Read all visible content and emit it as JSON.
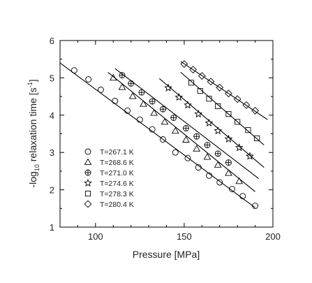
{
  "chart_data": {
    "type": "scatter",
    "xlabel": "Pressure  [MPa]",
    "ylabel": {
      "main": "-log",
      "sub": "10",
      "rest": " relaxation time  [s",
      "sup": "-1",
      "close": "]"
    },
    "xlim": [
      80,
      200
    ],
    "ylim": [
      1,
      6
    ],
    "xticks": [
      100,
      150,
      200
    ],
    "yticks": [
      1,
      2,
      3,
      4,
      5,
      6
    ],
    "grid": false,
    "legend_position": "bottom-left",
    "series": [
      {
        "name": "T=267.1 K",
        "marker": "circle",
        "x": [
          88,
          96,
          103,
          111,
          118,
          125,
          132,
          138,
          145,
          152,
          158,
          164,
          170,
          177,
          183,
          190
        ],
        "y": [
          5.2,
          4.96,
          4.68,
          4.38,
          4.12,
          3.88,
          3.62,
          3.35,
          3.0,
          2.85,
          2.6,
          2.38,
          2.2,
          2.02,
          1.83,
          1.57
        ],
        "fit": [
          [
            80,
            5.4
          ],
          [
            190,
            1.52
          ]
        ]
      },
      {
        "name": "T=268.6 K",
        "marker": "triangle",
        "x": [
          110,
          115,
          121,
          127,
          133,
          139,
          145,
          151,
          157,
          163,
          169,
          175,
          181
        ],
        "y": [
          5.0,
          4.75,
          4.51,
          4.3,
          4.06,
          3.82,
          3.58,
          3.34,
          3.1,
          2.88,
          2.67,
          2.45,
          2.23
        ],
        "fit": [
          [
            107,
            5.15
          ],
          [
            190,
            1.95
          ]
        ]
      },
      {
        "name": "T=271.0 K",
        "marker": "circle-plus",
        "x": [
          115,
          120,
          126,
          132,
          138,
          144,
          151,
          157,
          163,
          169,
          175
        ],
        "y": [
          5.07,
          4.85,
          4.61,
          4.37,
          4.16,
          3.93,
          3.65,
          3.43,
          3.2,
          2.97,
          2.73
        ],
        "fit": [
          [
            111,
            5.25
          ],
          [
            192,
            2.3
          ]
        ]
      },
      {
        "name": "T=274.6 K",
        "marker": "star",
        "x": [
          141,
          147,
          152,
          158,
          164,
          169,
          175,
          181,
          187
        ],
        "y": [
          4.73,
          4.48,
          4.27,
          4.03,
          3.79,
          3.58,
          3.36,
          3.13,
          2.9
        ],
        "fit": [
          [
            136,
            4.98
          ],
          [
            195,
            2.6
          ]
        ]
      },
      {
        "name": "T=278.3 K",
        "marker": "square",
        "x": [
          154,
          159,
          164,
          169,
          175,
          180,
          186,
          191
        ],
        "y": [
          4.87,
          4.65,
          4.44,
          4.24,
          4.03,
          3.82,
          3.6,
          3.38
        ],
        "fit": [
          [
            148,
            5.15
          ],
          [
            195,
            3.2
          ]
        ]
      },
      {
        "name": "T=280.4 K",
        "marker": "diamond",
        "x": [
          150,
          155,
          160,
          165,
          170,
          175,
          180,
          185,
          190
        ],
        "y": [
          5.37,
          5.22,
          5.05,
          4.9,
          4.74,
          4.58,
          4.43,
          4.27,
          4.12
        ],
        "fit": [
          [
            148,
            5.44
          ],
          [
            197,
            3.88
          ]
        ]
      }
    ]
  }
}
